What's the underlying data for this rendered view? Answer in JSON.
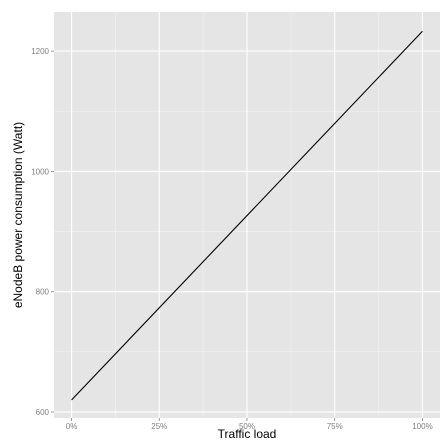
{
  "chart_data": {
    "type": "line",
    "title": "",
    "xlabel": "Traffic load",
    "ylabel": "eNodeB power consumption (Watt)",
    "x_tick_labels": [
      "0%",
      "25%",
      "50%",
      "75%",
      "100%"
    ],
    "x_ticks": [
      0,
      25,
      50,
      75,
      100
    ],
    "y_tick_labels": [
      "600",
      "800",
      "1000",
      "1200"
    ],
    "y_ticks": [
      600,
      800,
      1000,
      1200
    ],
    "xlim": [
      -5,
      105
    ],
    "ylim": [
      590,
      1265
    ],
    "grid": true,
    "series": [
      {
        "x": [
          0,
          100
        ],
        "y": [
          620,
          1233
        ]
      }
    ],
    "colors": {
      "panel_background": "#e5e5e5",
      "grid_major": "#ffffff",
      "grid_minor": "#f2f2f2",
      "line": "#000000",
      "tick_text": "#7f7f7f"
    }
  }
}
